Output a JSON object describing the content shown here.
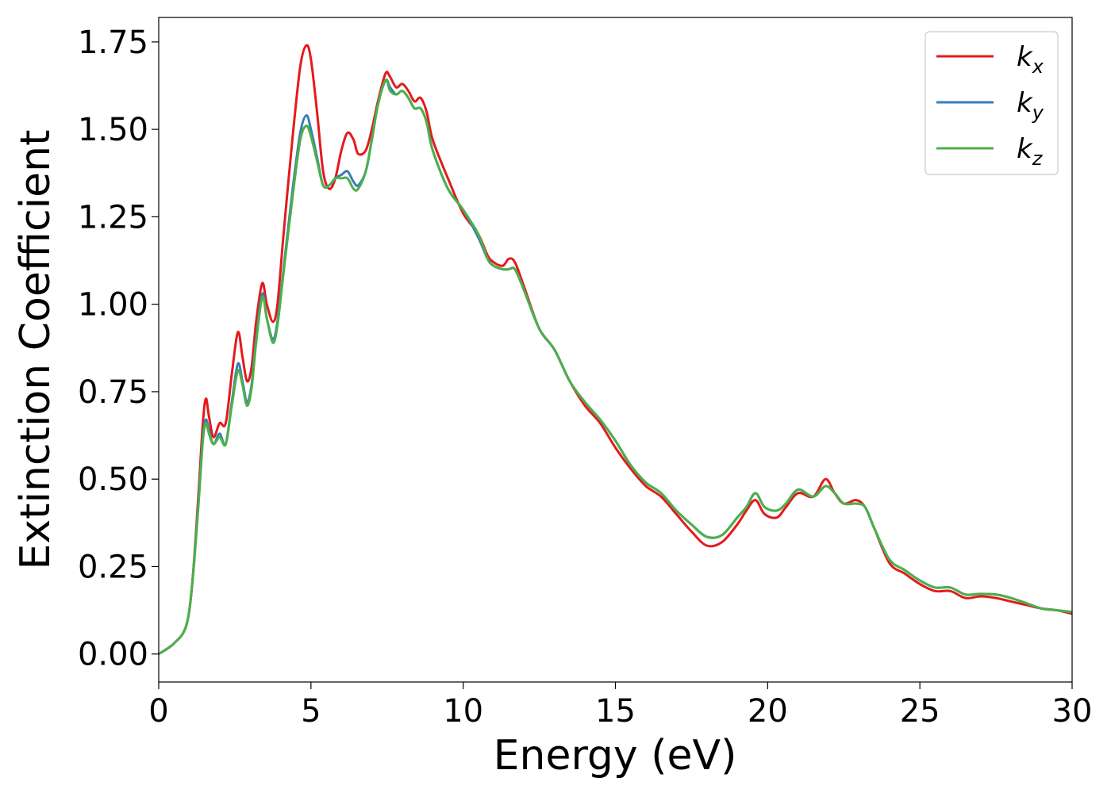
{
  "chart_data": {
    "type": "line",
    "xlabel": "Energy (eV)",
    "ylabel": "Extinction Coefficient",
    "xlim": [
      0,
      30
    ],
    "ylim": [
      -0.08,
      1.82
    ],
    "xticks": [
      0,
      5,
      10,
      15,
      20,
      25,
      30
    ],
    "xtick_labels": [
      "0",
      "5",
      "10",
      "15",
      "20",
      "25",
      "30"
    ],
    "yticks": [
      0,
      0.25,
      0.5,
      0.75,
      1.0,
      1.25,
      1.5,
      1.75
    ],
    "ytick_labels": [
      "0.00",
      "0.25",
      "0.50",
      "0.75",
      "1.00",
      "1.25",
      "1.50",
      "1.75"
    ],
    "grid": false,
    "legend_position": "top-right",
    "series": [
      {
        "name": "k",
        "subscript": "x",
        "color": "#e41a1c",
        "points": [
          [
            0,
            0.0
          ],
          [
            0.5,
            0.03
          ],
          [
            0.9,
            0.08
          ],
          [
            1.1,
            0.2
          ],
          [
            1.3,
            0.45
          ],
          [
            1.45,
            0.66
          ],
          [
            1.55,
            0.73
          ],
          [
            1.65,
            0.68
          ],
          [
            1.8,
            0.62
          ],
          [
            2.0,
            0.66
          ],
          [
            2.2,
            0.66
          ],
          [
            2.4,
            0.8
          ],
          [
            2.6,
            0.92
          ],
          [
            2.75,
            0.85
          ],
          [
            2.9,
            0.78
          ],
          [
            3.05,
            0.82
          ],
          [
            3.2,
            0.95
          ],
          [
            3.4,
            1.06
          ],
          [
            3.55,
            1.0
          ],
          [
            3.75,
            0.95
          ],
          [
            3.9,
            1.0
          ],
          [
            4.1,
            1.2
          ],
          [
            4.4,
            1.48
          ],
          [
            4.65,
            1.68
          ],
          [
            4.85,
            1.74
          ],
          [
            5.0,
            1.7
          ],
          [
            5.2,
            1.55
          ],
          [
            5.4,
            1.38
          ],
          [
            5.6,
            1.33
          ],
          [
            5.8,
            1.36
          ],
          [
            6.0,
            1.44
          ],
          [
            6.2,
            1.49
          ],
          [
            6.4,
            1.47
          ],
          [
            6.55,
            1.43
          ],
          [
            6.8,
            1.44
          ],
          [
            7.0,
            1.5
          ],
          [
            7.2,
            1.58
          ],
          [
            7.45,
            1.66
          ],
          [
            7.6,
            1.65
          ],
          [
            7.8,
            1.62
          ],
          [
            8.0,
            1.63
          ],
          [
            8.2,
            1.61
          ],
          [
            8.4,
            1.58
          ],
          [
            8.6,
            1.59
          ],
          [
            8.8,
            1.55
          ],
          [
            9.0,
            1.47
          ],
          [
            9.5,
            1.36
          ],
          [
            10.0,
            1.26
          ],
          [
            10.5,
            1.2
          ],
          [
            10.8,
            1.14
          ],
          [
            11.0,
            1.12
          ],
          [
            11.3,
            1.11
          ],
          [
            11.5,
            1.13
          ],
          [
            11.7,
            1.12
          ],
          [
            12.0,
            1.05
          ],
          [
            12.5,
            0.93
          ],
          [
            13.0,
            0.87
          ],
          [
            13.5,
            0.78
          ],
          [
            14.0,
            0.71
          ],
          [
            14.5,
            0.66
          ],
          [
            15.0,
            0.59
          ],
          [
            15.5,
            0.53
          ],
          [
            16.0,
            0.48
          ],
          [
            16.5,
            0.45
          ],
          [
            17.0,
            0.4
          ],
          [
            17.5,
            0.35
          ],
          [
            18.0,
            0.31
          ],
          [
            18.5,
            0.32
          ],
          [
            19.0,
            0.37
          ],
          [
            19.3,
            0.41
          ],
          [
            19.6,
            0.44
          ],
          [
            19.9,
            0.4
          ],
          [
            20.3,
            0.39
          ],
          [
            20.6,
            0.42
          ],
          [
            21.0,
            0.46
          ],
          [
            21.5,
            0.45
          ],
          [
            21.9,
            0.5
          ],
          [
            22.2,
            0.46
          ],
          [
            22.5,
            0.43
          ],
          [
            22.9,
            0.44
          ],
          [
            23.2,
            0.42
          ],
          [
            23.5,
            0.36
          ],
          [
            24.0,
            0.26
          ],
          [
            24.5,
            0.23
          ],
          [
            25.0,
            0.2
          ],
          [
            25.5,
            0.18
          ],
          [
            26.0,
            0.18
          ],
          [
            26.5,
            0.16
          ],
          [
            27.0,
            0.165
          ],
          [
            27.5,
            0.16
          ],
          [
            28.0,
            0.15
          ],
          [
            28.5,
            0.14
          ],
          [
            29.0,
            0.13
          ],
          [
            29.5,
            0.125
          ],
          [
            30.0,
            0.115
          ]
        ]
      },
      {
        "name": "k",
        "subscript": "y",
        "color": "#377eb8",
        "points": [
          [
            0,
            0.0
          ],
          [
            0.5,
            0.03
          ],
          [
            0.9,
            0.08
          ],
          [
            1.1,
            0.2
          ],
          [
            1.3,
            0.43
          ],
          [
            1.45,
            0.62
          ],
          [
            1.55,
            0.67
          ],
          [
            1.65,
            0.64
          ],
          [
            1.8,
            0.6
          ],
          [
            2.0,
            0.63
          ],
          [
            2.2,
            0.6
          ],
          [
            2.4,
            0.72
          ],
          [
            2.6,
            0.83
          ],
          [
            2.75,
            0.78
          ],
          [
            2.9,
            0.72
          ],
          [
            3.05,
            0.77
          ],
          [
            3.2,
            0.9
          ],
          [
            3.4,
            1.03
          ],
          [
            3.55,
            0.96
          ],
          [
            3.75,
            0.9
          ],
          [
            3.9,
            0.95
          ],
          [
            4.1,
            1.1
          ],
          [
            4.4,
            1.33
          ],
          [
            4.65,
            1.49
          ],
          [
            4.85,
            1.54
          ],
          [
            5.0,
            1.5
          ],
          [
            5.2,
            1.42
          ],
          [
            5.4,
            1.34
          ],
          [
            5.6,
            1.34
          ],
          [
            5.8,
            1.36
          ],
          [
            6.0,
            1.37
          ],
          [
            6.2,
            1.38
          ],
          [
            6.4,
            1.35
          ],
          [
            6.55,
            1.34
          ],
          [
            6.8,
            1.38
          ],
          [
            7.0,
            1.47
          ],
          [
            7.2,
            1.57
          ],
          [
            7.45,
            1.64
          ],
          [
            7.6,
            1.62
          ],
          [
            7.8,
            1.6
          ],
          [
            8.0,
            1.61
          ],
          [
            8.2,
            1.59
          ],
          [
            8.4,
            1.56
          ],
          [
            8.6,
            1.56
          ],
          [
            8.8,
            1.52
          ],
          [
            9.0,
            1.44
          ],
          [
            9.5,
            1.33
          ],
          [
            10.0,
            1.27
          ],
          [
            10.5,
            1.19
          ],
          [
            10.8,
            1.13
          ],
          [
            11.0,
            1.11
          ],
          [
            11.3,
            1.1
          ],
          [
            11.5,
            1.1
          ],
          [
            11.7,
            1.1
          ],
          [
            12.0,
            1.04
          ],
          [
            12.5,
            0.93
          ],
          [
            13.0,
            0.87
          ],
          [
            13.5,
            0.78
          ],
          [
            14.0,
            0.72
          ],
          [
            14.5,
            0.67
          ],
          [
            15.0,
            0.61
          ],
          [
            15.5,
            0.54
          ],
          [
            16.0,
            0.49
          ],
          [
            16.5,
            0.46
          ],
          [
            17.0,
            0.41
          ],
          [
            17.5,
            0.37
          ],
          [
            18.0,
            0.335
          ],
          [
            18.5,
            0.34
          ],
          [
            19.0,
            0.39
          ],
          [
            19.3,
            0.42
          ],
          [
            19.6,
            0.46
          ],
          [
            19.9,
            0.42
          ],
          [
            20.3,
            0.41
          ],
          [
            20.6,
            0.43
          ],
          [
            21.0,
            0.47
          ],
          [
            21.5,
            0.45
          ],
          [
            21.9,
            0.48
          ],
          [
            22.2,
            0.46
          ],
          [
            22.5,
            0.43
          ],
          [
            22.9,
            0.43
          ],
          [
            23.2,
            0.42
          ],
          [
            23.5,
            0.36
          ],
          [
            24.0,
            0.27
          ],
          [
            24.5,
            0.24
          ],
          [
            25.0,
            0.21
          ],
          [
            25.5,
            0.19
          ],
          [
            26.0,
            0.19
          ],
          [
            26.5,
            0.17
          ],
          [
            27.0,
            0.172
          ],
          [
            27.5,
            0.17
          ],
          [
            28.0,
            0.16
          ],
          [
            28.5,
            0.145
          ],
          [
            29.0,
            0.13
          ],
          [
            29.5,
            0.125
          ],
          [
            30.0,
            0.12
          ]
        ]
      },
      {
        "name": "k",
        "subscript": "z",
        "color": "#4daf4a",
        "points": [
          [
            0,
            0.0
          ],
          [
            0.5,
            0.03
          ],
          [
            0.9,
            0.08
          ],
          [
            1.1,
            0.2
          ],
          [
            1.3,
            0.42
          ],
          [
            1.45,
            0.61
          ],
          [
            1.55,
            0.66
          ],
          [
            1.65,
            0.63
          ],
          [
            1.8,
            0.6
          ],
          [
            2.0,
            0.62
          ],
          [
            2.2,
            0.6
          ],
          [
            2.4,
            0.71
          ],
          [
            2.6,
            0.81
          ],
          [
            2.75,
            0.77
          ],
          [
            2.9,
            0.71
          ],
          [
            3.05,
            0.76
          ],
          [
            3.2,
            0.89
          ],
          [
            3.4,
            1.02
          ],
          [
            3.55,
            0.96
          ],
          [
            3.75,
            0.89
          ],
          [
            3.9,
            0.94
          ],
          [
            4.1,
            1.09
          ],
          [
            4.4,
            1.31
          ],
          [
            4.65,
            1.47
          ],
          [
            4.85,
            1.51
          ],
          [
            5.0,
            1.48
          ],
          [
            5.2,
            1.41
          ],
          [
            5.4,
            1.34
          ],
          [
            5.6,
            1.34
          ],
          [
            5.8,
            1.36
          ],
          [
            6.0,
            1.36
          ],
          [
            6.2,
            1.36
          ],
          [
            6.4,
            1.33
          ],
          [
            6.55,
            1.33
          ],
          [
            6.8,
            1.38
          ],
          [
            7.0,
            1.47
          ],
          [
            7.2,
            1.57
          ],
          [
            7.45,
            1.64
          ],
          [
            7.6,
            1.61
          ],
          [
            7.8,
            1.6
          ],
          [
            8.0,
            1.61
          ],
          [
            8.2,
            1.59
          ],
          [
            8.4,
            1.56
          ],
          [
            8.6,
            1.56
          ],
          [
            8.8,
            1.52
          ],
          [
            9.0,
            1.44
          ],
          [
            9.5,
            1.33
          ],
          [
            10.0,
            1.27
          ],
          [
            10.5,
            1.2
          ],
          [
            10.8,
            1.13
          ],
          [
            11.0,
            1.11
          ],
          [
            11.3,
            1.1
          ],
          [
            11.5,
            1.1
          ],
          [
            11.7,
            1.1
          ],
          [
            12.0,
            1.04
          ],
          [
            12.5,
            0.93
          ],
          [
            13.0,
            0.87
          ],
          [
            13.5,
            0.78
          ],
          [
            14.0,
            0.72
          ],
          [
            14.5,
            0.67
          ],
          [
            15.0,
            0.61
          ],
          [
            15.5,
            0.54
          ],
          [
            16.0,
            0.49
          ],
          [
            16.5,
            0.46
          ],
          [
            17.0,
            0.41
          ],
          [
            17.5,
            0.37
          ],
          [
            18.0,
            0.335
          ],
          [
            18.5,
            0.34
          ],
          [
            19.0,
            0.39
          ],
          [
            19.3,
            0.42
          ],
          [
            19.6,
            0.46
          ],
          [
            19.9,
            0.42
          ],
          [
            20.3,
            0.41
          ],
          [
            20.6,
            0.43
          ],
          [
            21.0,
            0.47
          ],
          [
            21.5,
            0.45
          ],
          [
            21.9,
            0.48
          ],
          [
            22.2,
            0.46
          ],
          [
            22.5,
            0.43
          ],
          [
            22.9,
            0.43
          ],
          [
            23.2,
            0.42
          ],
          [
            23.5,
            0.36
          ],
          [
            24.0,
            0.27
          ],
          [
            24.5,
            0.24
          ],
          [
            25.0,
            0.21
          ],
          [
            25.5,
            0.19
          ],
          [
            26.0,
            0.19
          ],
          [
            26.5,
            0.17
          ],
          [
            27.0,
            0.172
          ],
          [
            27.5,
            0.17
          ],
          [
            28.0,
            0.16
          ],
          [
            28.5,
            0.145
          ],
          [
            29.0,
            0.13
          ],
          [
            29.5,
            0.125
          ],
          [
            30.0,
            0.12
          ]
        ]
      }
    ]
  }
}
